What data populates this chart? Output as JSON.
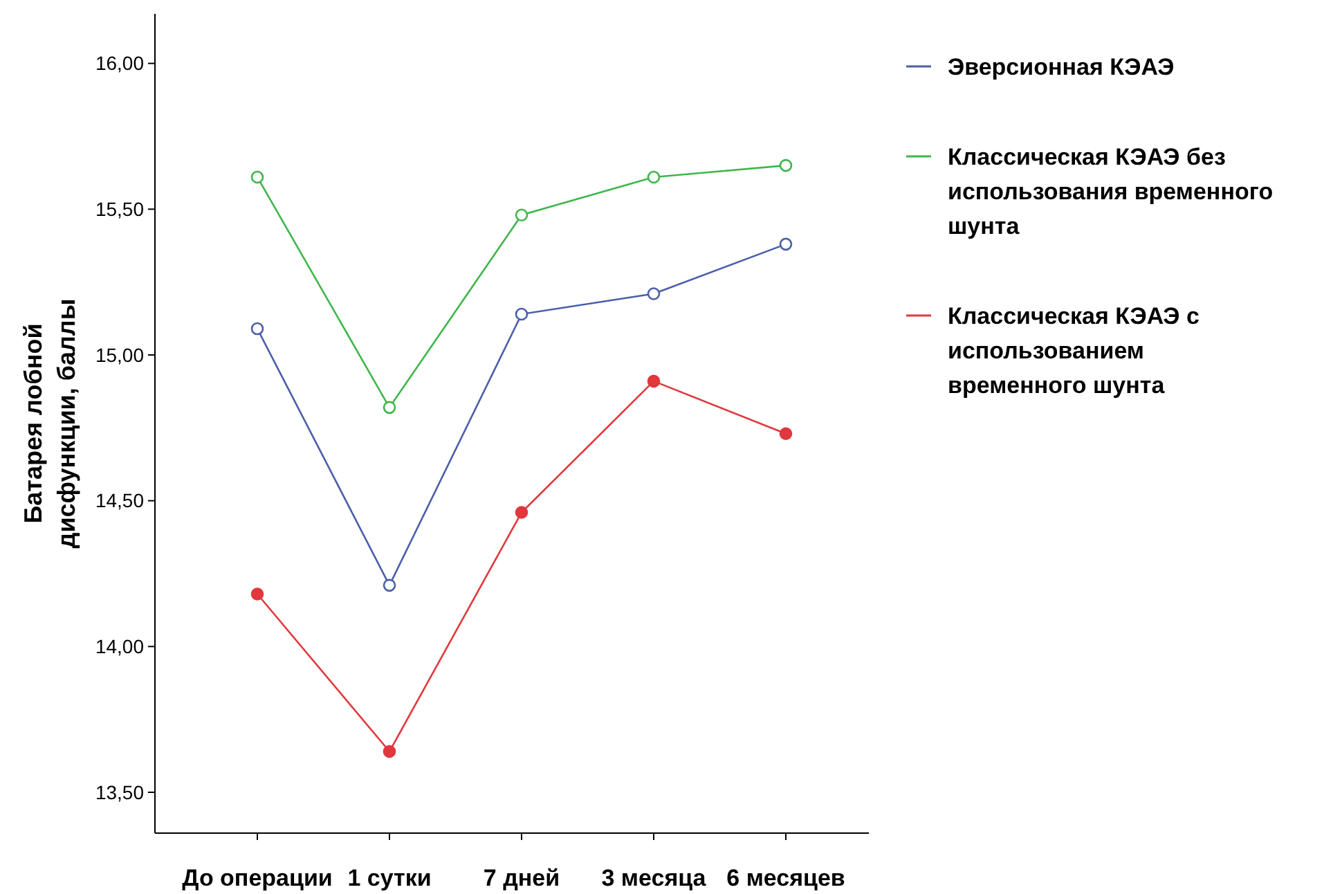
{
  "chart_data": {
    "type": "line",
    "ylabel": "Батарея лобной дисфункции, баллы",
    "categories": [
      "До операции",
      "1 сутки",
      "7 дней",
      "3 месяца",
      "6 месяцев"
    ],
    "ylim": [
      13.36,
      16.17
    ],
    "yticks": [
      {
        "value": 13.5,
        "label": "13,50"
      },
      {
        "value": 14,
        "label": "14,00"
      },
      {
        "value": 14.5,
        "label": "14,50"
      },
      {
        "value": 15,
        "label": "15,00"
      },
      {
        "value": 15.5,
        "label": "15,50"
      },
      {
        "value": 16,
        "label": "16,00"
      }
    ],
    "grid": false,
    "legend": "right",
    "marker": "circle",
    "line_style": "solid",
    "series": [
      {
        "name": "Эверсионная КЭАЭ",
        "color": "#4a5fa8",
        "values": [
          15.09,
          14.21,
          15.14,
          15.21,
          15.38
        ]
      },
      {
        "name": "Классическая КЭАЭ без использования временного шунта",
        "color": "#3fb64a",
        "values": [
          15.61,
          14.82,
          15.48,
          15.61,
          15.65
        ]
      },
      {
        "name": "Классическая КЭАЭ с использованием временного шунта",
        "color": "#e0383c",
        "values": [
          14.18,
          13.64,
          14.46,
          14.91,
          14.73
        ]
      }
    ]
  }
}
